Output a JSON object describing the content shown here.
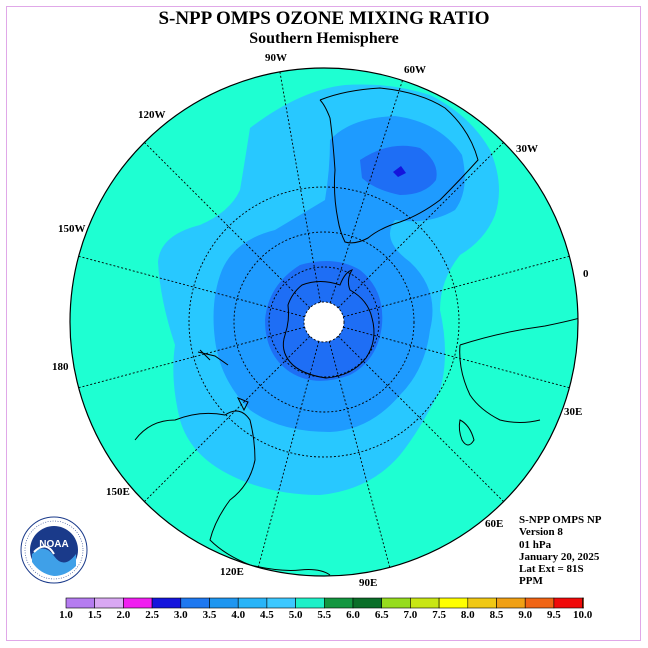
{
  "title": "S-NPP OMPS OZONE MIXING RATIO",
  "subtitle": "Southern Hemisphere",
  "longitude_labels": [
    "90W",
    "60W",
    "30W",
    "0",
    "30E",
    "60E",
    "90E",
    "120E",
    "150E",
    "180",
    "150W",
    "120W"
  ],
  "info": {
    "instrument": "S-NPP OMPS NP",
    "version": "Version 8",
    "level": "01 hPa",
    "date": "January 20, 2025",
    "lat_ext": "Lat Ext = 81S",
    "units": "PPM"
  },
  "colorbar": {
    "ticks": [
      "1.0",
      "1.5",
      "2.0",
      "2.5",
      "3.0",
      "3.5",
      "4.0",
      "4.5",
      "5.0",
      "5.5",
      "6.0",
      "6.5",
      "7.0",
      "7.5",
      "8.0",
      "8.5",
      "9.0",
      "9.5",
      "10.0"
    ],
    "colors": [
      "#b57cf0",
      "#d9a8f3",
      "#f01ef0",
      "#1414dc",
      "#1e78f0",
      "#1e96f0",
      "#28b4f8",
      "#3cc8ff",
      "#1ef0c8",
      "#139640",
      "#0a6e28",
      "#96dc1e",
      "#c8e614",
      "#ffff00",
      "#f0c814",
      "#f0a014",
      "#f06414",
      "#f00a0a",
      "#825032"
    ]
  },
  "map_colors": {
    "c45": "#1effd2",
    "c40": "#28c8ff",
    "c35": "#1e9bff",
    "c30": "#1e6ef5",
    "c25": "#1414dc",
    "polar_hole": "#ffffff"
  },
  "logo_text": "NOAA"
}
